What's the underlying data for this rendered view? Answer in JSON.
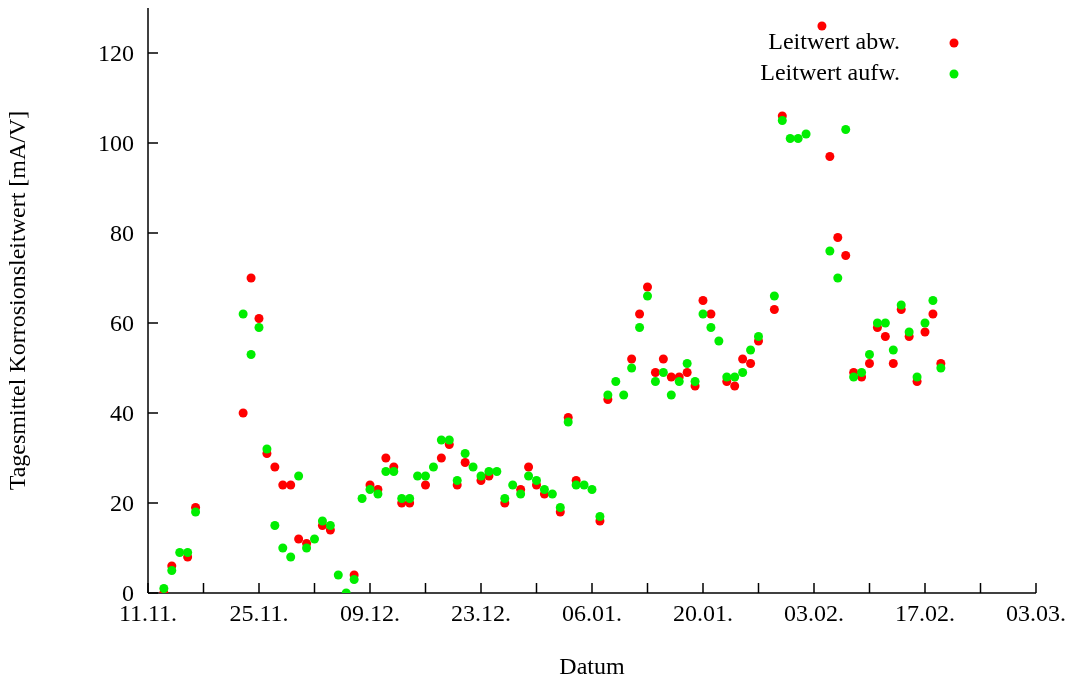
{
  "chart_data": {
    "type": "scatter",
    "xlabel": "Datum",
    "ylabel": "Tagesmittel Korrosionsleitwert [mA/V]",
    "categories": [
      "11.11.",
      null,
      null,
      null,
      null,
      null,
      null,
      null,
      null,
      null,
      null,
      null,
      null,
      null,
      "25.11.",
      null,
      null,
      null,
      null,
      null,
      null,
      null,
      null,
      null,
      null,
      null,
      null,
      null,
      "09.12.",
      null,
      null,
      null,
      null,
      null,
      null,
      null,
      null,
      null,
      null,
      null,
      null,
      null,
      "23.12.",
      null,
      null,
      null,
      null,
      null,
      null,
      null,
      null,
      null,
      null,
      null,
      null,
      null,
      "06.01.",
      null,
      null,
      null,
      null,
      null,
      null,
      null,
      null,
      null,
      null,
      null,
      null,
      null,
      "20.01.",
      null,
      null,
      null,
      null,
      null,
      null,
      null,
      null,
      null,
      null,
      null,
      null,
      null,
      "03.02.",
      null,
      null,
      null,
      null,
      null,
      null,
      null,
      null,
      null,
      null,
      null,
      null,
      null,
      "17.02.",
      null,
      null,
      null,
      null,
      null,
      null,
      null,
      null,
      null,
      null,
      null,
      null,
      null,
      "03.03."
    ],
    "series": [
      {
        "name": "Leitwert abw.",
        "color": "#ff0000",
        "values": [
          null,
          null,
          0,
          6,
          null,
          8,
          19,
          null,
          null,
          null,
          null,
          null,
          40,
          70,
          61,
          31,
          28,
          24,
          24,
          12,
          11,
          null,
          15,
          14,
          null,
          null,
          4,
          null,
          24,
          23,
          30,
          28,
          20,
          20,
          null,
          24,
          null,
          30,
          33,
          24,
          29,
          null,
          25,
          26,
          null,
          20,
          null,
          23,
          28,
          24,
          22,
          null,
          18,
          39,
          25,
          null,
          null,
          16,
          43,
          null,
          null,
          52,
          62,
          68,
          49,
          52,
          48,
          48,
          49,
          46,
          65,
          62,
          null,
          47,
          46,
          52,
          51,
          56,
          null,
          63,
          106,
          null,
          null,
          null,
          null,
          126,
          97,
          79,
          75,
          49,
          48,
          51,
          59,
          57,
          51,
          63,
          57,
          47,
          58,
          62,
          51,
          null,
          null,
          null,
          null,
          null,
          null,
          null,
          null,
          null,
          null,
          null,
          null
        ]
      },
      {
        "name": "Leitwert aufw.",
        "color": "#00ee00",
        "values": [
          null,
          null,
          1,
          5,
          9,
          9,
          18,
          null,
          null,
          null,
          null,
          null,
          62,
          53,
          59,
          32,
          15,
          10,
          8,
          26,
          10,
          12,
          16,
          15,
          4,
          0,
          3,
          21,
          23,
          22,
          27,
          27,
          21,
          21,
          26,
          26,
          28,
          34,
          34,
          25,
          31,
          28,
          26,
          27,
          27,
          21,
          24,
          22,
          26,
          25,
          23,
          22,
          19,
          38,
          24,
          24,
          23,
          17,
          44,
          47,
          44,
          50,
          59,
          66,
          47,
          49,
          44,
          47,
          51,
          47,
          62,
          59,
          56,
          48,
          48,
          49,
          54,
          57,
          null,
          66,
          105,
          101,
          101,
          102,
          null,
          null,
          76,
          70,
          103,
          48,
          49,
          53,
          60,
          60,
          54,
          64,
          58,
          48,
          60,
          65,
          50,
          null,
          null,
          null,
          null,
          null,
          null,
          null,
          null,
          null,
          null,
          null,
          null
        ]
      }
    ],
    "ylim": [
      0,
      130
    ],
    "yticks": [
      0,
      20,
      40,
      60,
      80,
      100,
      120
    ],
    "legend": "top right",
    "marker": "circle"
  }
}
